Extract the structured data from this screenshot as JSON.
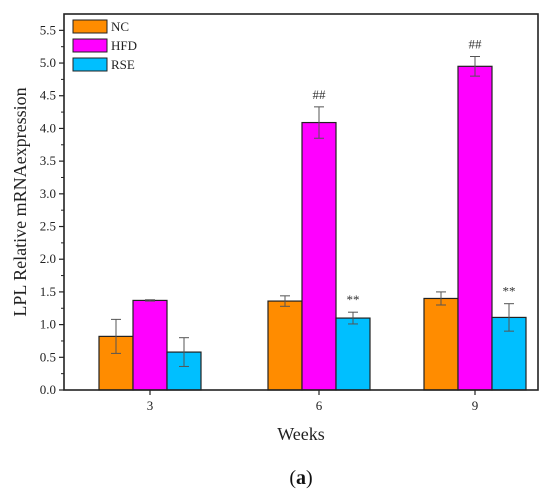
{
  "chart_data": {
    "type": "bar",
    "xlabel": "Weeks",
    "ylabel": "LPL Relative mRNAexpression",
    "caption_paren_open": "(",
    "caption_letter": "a",
    "caption_paren_close": ")",
    "categories": [
      "3",
      "6",
      "9"
    ],
    "ylim": [
      0,
      5.75
    ],
    "yticks": [
      0.0,
      0.5,
      1.0,
      1.5,
      2.0,
      2.5,
      3.0,
      3.5,
      4.0,
      4.5,
      5.0,
      5.5
    ],
    "ytick_labels": [
      "0.0",
      "0.5",
      "1.0",
      "1.5",
      "2.0",
      "2.5",
      "3.0",
      "3.5",
      "4.0",
      "4.5",
      "5.0",
      "5.5"
    ],
    "legend_position": "top-left",
    "grid": false,
    "series": [
      {
        "name": "NC",
        "color": "#ff8c00",
        "values": [
          0.82,
          1.36,
          1.4
        ],
        "errors": [
          0.26,
          0.08,
          0.1
        ]
      },
      {
        "name": "HFD",
        "color": "#ff00ff",
        "values": [
          1.37,
          4.09,
          4.95
        ],
        "errors": [
          0.01,
          0.24,
          0.15
        ]
      },
      {
        "name": "RSE",
        "color": "#00bfff",
        "values": [
          0.58,
          1.1,
          1.11
        ],
        "errors": [
          0.22,
          0.09,
          0.21
        ]
      }
    ],
    "annotations": [
      {
        "text": "##",
        "category": "6",
        "series": "HFD"
      },
      {
        "text": "##",
        "category": "9",
        "series": "HFD"
      },
      {
        "text": "**",
        "category": "6",
        "series": "RSE"
      },
      {
        "text": "**",
        "category": "9",
        "series": "RSE"
      }
    ]
  }
}
